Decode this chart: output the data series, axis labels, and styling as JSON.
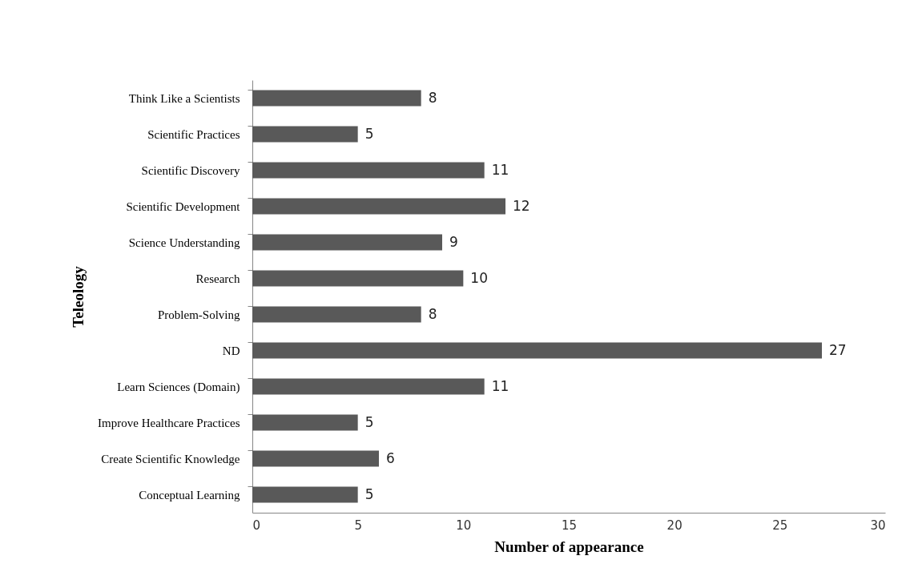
{
  "chart_data": {
    "type": "bar",
    "orientation": "horizontal",
    "xlabel": "Number of appearance",
    "ylabel": "Teleology",
    "categories": [
      "Think Like a Scientists",
      "Scientific Practices",
      "Scientific Discovery",
      "Scientific Development",
      "Science Understanding",
      "Research",
      "Problem-Solving",
      "ND",
      "Learn Sciences (Domain)",
      "Improve Healthcare Practices",
      "Create Scientific Knowledge",
      "Conceptual Learning"
    ],
    "values": [
      8,
      5,
      11,
      12,
      9,
      10,
      8,
      27,
      11,
      5,
      6,
      5
    ],
    "color": "#595959",
    "xlim": [
      0,
      30
    ],
    "xticks": [
      0,
      5,
      10,
      15,
      20,
      25,
      30
    ],
    "data_labels": true,
    "grid": false
  }
}
